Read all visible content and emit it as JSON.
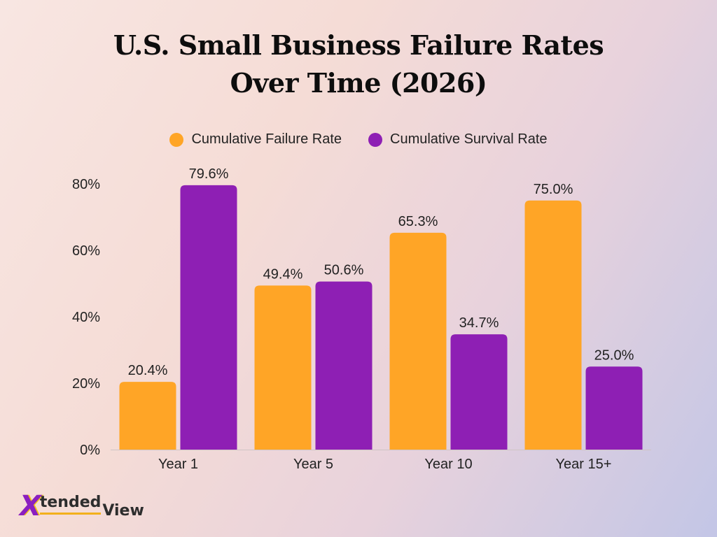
{
  "chart_data": {
    "type": "bar",
    "title": "U.S. Small Business Failure Rates Over Time (2026)",
    "categories": [
      "Year 1",
      "Year 5",
      "Year 10",
      "Year 15+"
    ],
    "series": [
      {
        "name": "Cumulative Failure Rate",
        "color": "#ffa526",
        "values": [
          20.4,
          49.4,
          65.3,
          75.0
        ],
        "labels": [
          "20.4%",
          "49.4%",
          "65.3%",
          "75.0%"
        ]
      },
      {
        "name": "Cumulative Survival Rate",
        "color": "#8e1fb4",
        "values": [
          79.6,
          50.6,
          34.7,
          25.0
        ],
        "labels": [
          "79.6%",
          "50.6%",
          "34.7%",
          "25.0%"
        ]
      }
    ],
    "y_ticks": [
      0,
      20,
      40,
      60,
      80
    ],
    "y_tick_labels": [
      "0%",
      "20%",
      "40%",
      "60%",
      "80%"
    ],
    "ylim": [
      0,
      80
    ],
    "grid": false,
    "legend_position": "top-center"
  },
  "logo": {
    "mark": "X",
    "text_a": "tended",
    "text_b": "View"
  }
}
